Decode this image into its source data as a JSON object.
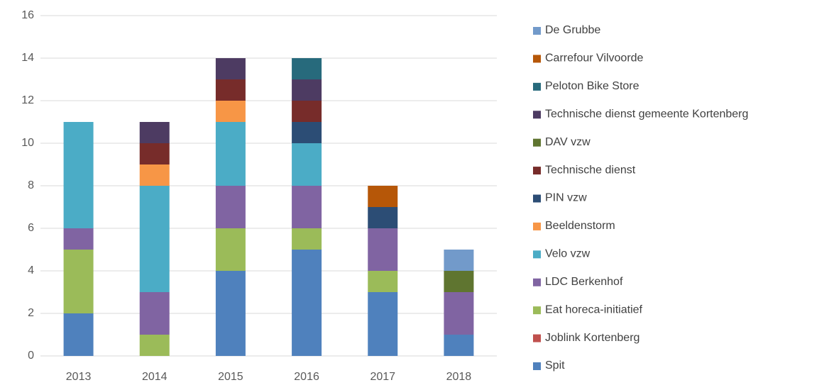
{
  "chart_data": {
    "type": "bar",
    "stacked": true,
    "categories": [
      "2013",
      "2014",
      "2015",
      "2016",
      "2017",
      "2018"
    ],
    "series": [
      {
        "name": "Spit",
        "color": "#4f81bd",
        "values": [
          2,
          0,
          4,
          5,
          3,
          1
        ]
      },
      {
        "name": "Joblink Kortenberg",
        "color": "#c0504d",
        "values": [
          0,
          0,
          0,
          0,
          0,
          0
        ]
      },
      {
        "name": "Eat horeca-initiatief",
        "color": "#9bbb59",
        "values": [
          3,
          1,
          2,
          1,
          1,
          0
        ]
      },
      {
        "name": "LDC Berkenhof",
        "color": "#8064a2",
        "values": [
          1,
          2,
          2,
          2,
          2,
          2
        ]
      },
      {
        "name": "Velo vzw",
        "color": "#4bacc6",
        "values": [
          5,
          5,
          3,
          2,
          0,
          0
        ]
      },
      {
        "name": "Beeldenstorm",
        "color": "#f79646",
        "values": [
          0,
          1,
          1,
          0,
          0,
          0
        ]
      },
      {
        "name": "PIN vzw",
        "color": "#2c4d75",
        "values": [
          0,
          0,
          0,
          1,
          1,
          0
        ]
      },
      {
        "name": "Technische dienst",
        "color": "#772c2a",
        "values": [
          0,
          1,
          1,
          1,
          0,
          0
        ]
      },
      {
        "name": "DAV vzw",
        "color": "#5f7530",
        "values": [
          0,
          0,
          0,
          0,
          0,
          1
        ]
      },
      {
        "name": "Technische dienst gemeente Kortenberg",
        "color": "#4d3b62",
        "values": [
          0,
          1,
          1,
          1,
          0,
          0
        ]
      },
      {
        "name": "Peloton Bike Store",
        "color": "#276a7c",
        "values": [
          0,
          0,
          0,
          1,
          0,
          0
        ]
      },
      {
        "name": "Carrefour Vilvoorde",
        "color": "#b65708",
        "values": [
          0,
          0,
          0,
          0,
          1,
          0
        ]
      },
      {
        "name": "De Grubbe",
        "color": "#729aca",
        "values": [
          0,
          0,
          0,
          0,
          0,
          1
        ]
      }
    ],
    "ylim": [
      0,
      16
    ],
    "yticks": [
      0,
      2,
      4,
      6,
      8,
      10,
      12,
      14,
      16
    ],
    "grid": true,
    "legend": "right"
  }
}
